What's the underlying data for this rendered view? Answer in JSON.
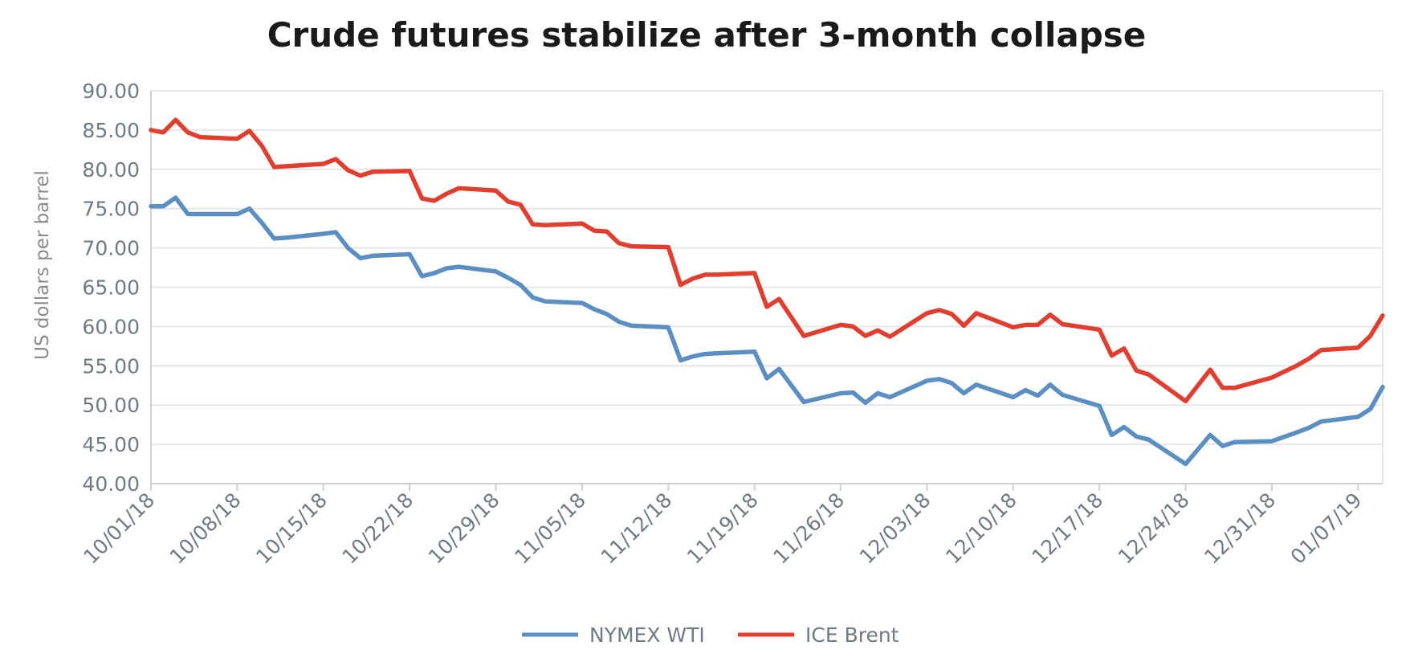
{
  "chart_data": {
    "type": "line",
    "title": "Crude futures stabilize after 3-month collapse",
    "xlabel": "",
    "ylabel": "US dollars per barrel",
    "ylim": [
      40,
      90
    ],
    "yticks": [
      "90.00",
      "85.00",
      "80.00",
      "75.00",
      "70.00",
      "65.00",
      "60.00",
      "55.00",
      "50.00",
      "45.00",
      "40.00"
    ],
    "xtick_labels": [
      "10/01/18",
      "10/08/18",
      "10/15/18",
      "10/22/18",
      "10/29/18",
      "11/05/18",
      "11/12/18",
      "11/19/18",
      "11/26/18",
      "12/03/18",
      "12/10/18",
      "12/17/18",
      "12/24/18",
      "12/31/18",
      "01/07/19"
    ],
    "x": [
      "10/01/18",
      "10/02/18",
      "10/03/18",
      "10/04/18",
      "10/05/18",
      "10/08/18",
      "10/09/18",
      "10/10/18",
      "10/11/18",
      "10/12/18",
      "10/15/18",
      "10/16/18",
      "10/17/18",
      "10/18/18",
      "10/19/18",
      "10/22/18",
      "10/23/18",
      "10/24/18",
      "10/25/18",
      "10/26/18",
      "10/29/18",
      "10/30/18",
      "10/31/18",
      "11/01/18",
      "11/02/18",
      "11/05/18",
      "11/06/18",
      "11/07/18",
      "11/08/18",
      "11/09/18",
      "11/12/18",
      "11/13/18",
      "11/14/18",
      "11/15/18",
      "11/16/18",
      "11/19/18",
      "11/20/18",
      "11/21/18",
      "11/23/18",
      "11/26/18",
      "11/27/18",
      "11/28/18",
      "11/29/18",
      "11/30/18",
      "12/03/18",
      "12/04/18",
      "12/05/18",
      "12/06/18",
      "12/07/18",
      "12/10/18",
      "12/11/18",
      "12/12/18",
      "12/13/18",
      "12/14/18",
      "12/17/18",
      "12/18/18",
      "12/19/18",
      "12/20/18",
      "12/21/18",
      "12/24/18",
      "12/26/18",
      "12/27/18",
      "12/28/18",
      "12/31/18",
      "01/02/19",
      "01/03/19",
      "01/04/19",
      "01/07/19",
      "01/08/19",
      "01/09/19"
    ],
    "series": [
      {
        "name": "NYMEX WTI",
        "color": "#5b8fc2",
        "values": [
          75.3,
          75.3,
          76.4,
          74.3,
          74.3,
          74.3,
          75.0,
          73.2,
          71.2,
          71.3,
          71.8,
          72.0,
          70.0,
          68.7,
          69.0,
          69.2,
          66.4,
          66.8,
          67.4,
          67.6,
          67.0,
          66.2,
          65.3,
          63.7,
          63.2,
          63.0,
          62.2,
          61.6,
          60.6,
          60.1,
          59.9,
          55.7,
          56.2,
          56.5,
          56.6,
          56.8,
          53.4,
          54.6,
          50.4,
          51.5,
          51.6,
          50.3,
          51.5,
          51.0,
          53.1,
          53.3,
          52.8,
          51.5,
          52.6,
          51.0,
          51.9,
          51.2,
          52.6,
          51.3,
          49.9,
          46.2,
          47.2,
          46.0,
          45.6,
          42.5,
          46.2,
          44.8,
          45.3,
          45.4,
          46.5,
          47.1,
          47.9,
          48.5,
          49.5,
          52.3
        ]
      },
      {
        "name": "ICE Brent",
        "color": "#e03e2f",
        "values": [
          85.0,
          84.7,
          86.3,
          84.7,
          84.1,
          83.9,
          84.9,
          83.0,
          80.3,
          80.4,
          80.7,
          81.3,
          79.9,
          79.2,
          79.7,
          79.8,
          76.3,
          76.0,
          76.9,
          77.6,
          77.3,
          75.9,
          75.5,
          73.0,
          72.9,
          73.1,
          72.2,
          72.1,
          70.6,
          70.2,
          70.1,
          65.3,
          66.1,
          66.6,
          66.6,
          66.8,
          62.5,
          63.5,
          58.8,
          60.2,
          60.0,
          58.8,
          59.5,
          58.7,
          61.7,
          62.1,
          61.6,
          60.1,
          61.7,
          59.9,
          60.2,
          60.2,
          61.5,
          60.3,
          59.6,
          56.3,
          57.2,
          54.4,
          53.9,
          50.5,
          54.5,
          52.2,
          52.2,
          53.5,
          55.0,
          55.9,
          57.0,
          57.3,
          58.8,
          61.4
        ]
      }
    ],
    "legend_position": "bottom",
    "grid": true
  }
}
